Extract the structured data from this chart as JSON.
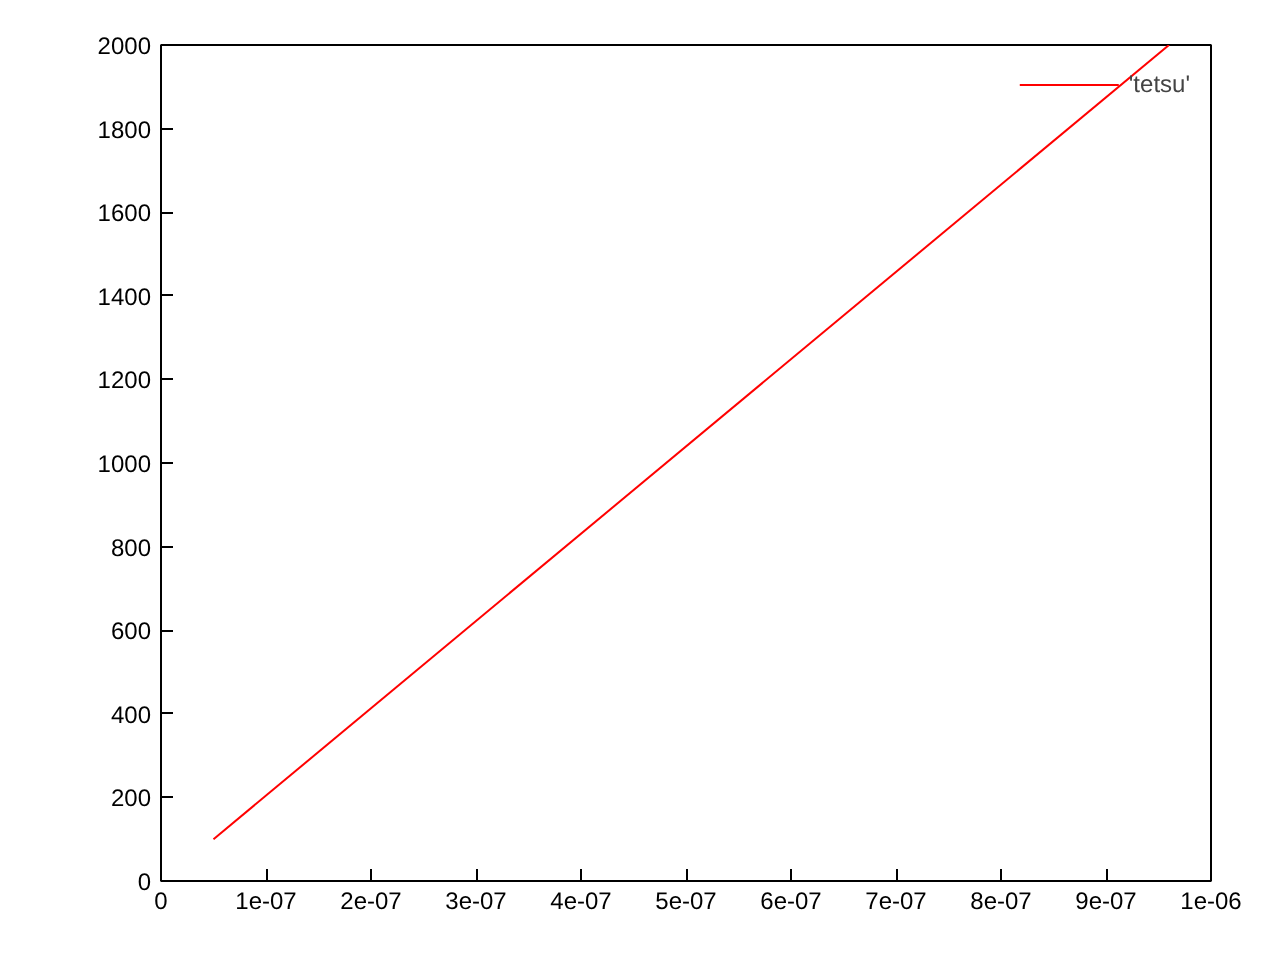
{
  "chart_data": {
    "type": "line",
    "x": [
      5e-08,
      9.6e-07
    ],
    "series": [
      {
        "name": "'tetsu'",
        "color": "#ff0000",
        "values": [
          100,
          2000
        ]
      }
    ],
    "xlim": [
      0,
      1e-06
    ],
    "ylim": [
      0,
      2000
    ],
    "xticks": [
      0,
      {
        "value": 1e-07,
        "label": "1e-07"
      },
      {
        "value": 2e-07,
        "label": "2e-07"
      },
      {
        "value": 3e-07,
        "label": "3e-07"
      },
      {
        "value": 4e-07,
        "label": "4e-07"
      },
      {
        "value": 5e-07,
        "label": "5e-07"
      },
      {
        "value": 6e-07,
        "label": "6e-07"
      },
      {
        "value": 7e-07,
        "label": "7e-07"
      },
      {
        "value": 8e-07,
        "label": "8e-07"
      },
      {
        "value": 9e-07,
        "label": "9e-07"
      },
      {
        "value": 1e-06,
        "label": "1e-06"
      }
    ],
    "yticks": [
      0,
      200,
      400,
      600,
      800,
      1000,
      1200,
      1400,
      1600,
      1800,
      2000
    ],
    "grid": false,
    "legend": "top right",
    "marker": "none",
    "line_style": "solid"
  }
}
